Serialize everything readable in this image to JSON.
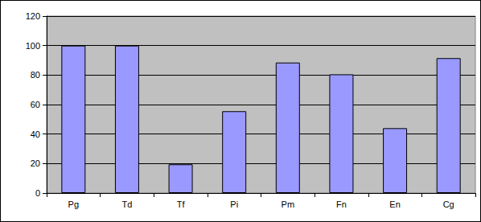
{
  "chart_data": {
    "type": "bar",
    "categories": [
      "Pg",
      "Td",
      "Tf",
      "Pi",
      "Pm",
      "Fn",
      "En",
      "Cg"
    ],
    "values": [
      100,
      100,
      19.5,
      55.5,
      88.5,
      80.5,
      44,
      91.5
    ],
    "color": "#9999ff",
    "ylim": [
      0,
      120
    ],
    "yticks": [
      0,
      20,
      40,
      60,
      80,
      100,
      120
    ],
    "grid": true
  }
}
